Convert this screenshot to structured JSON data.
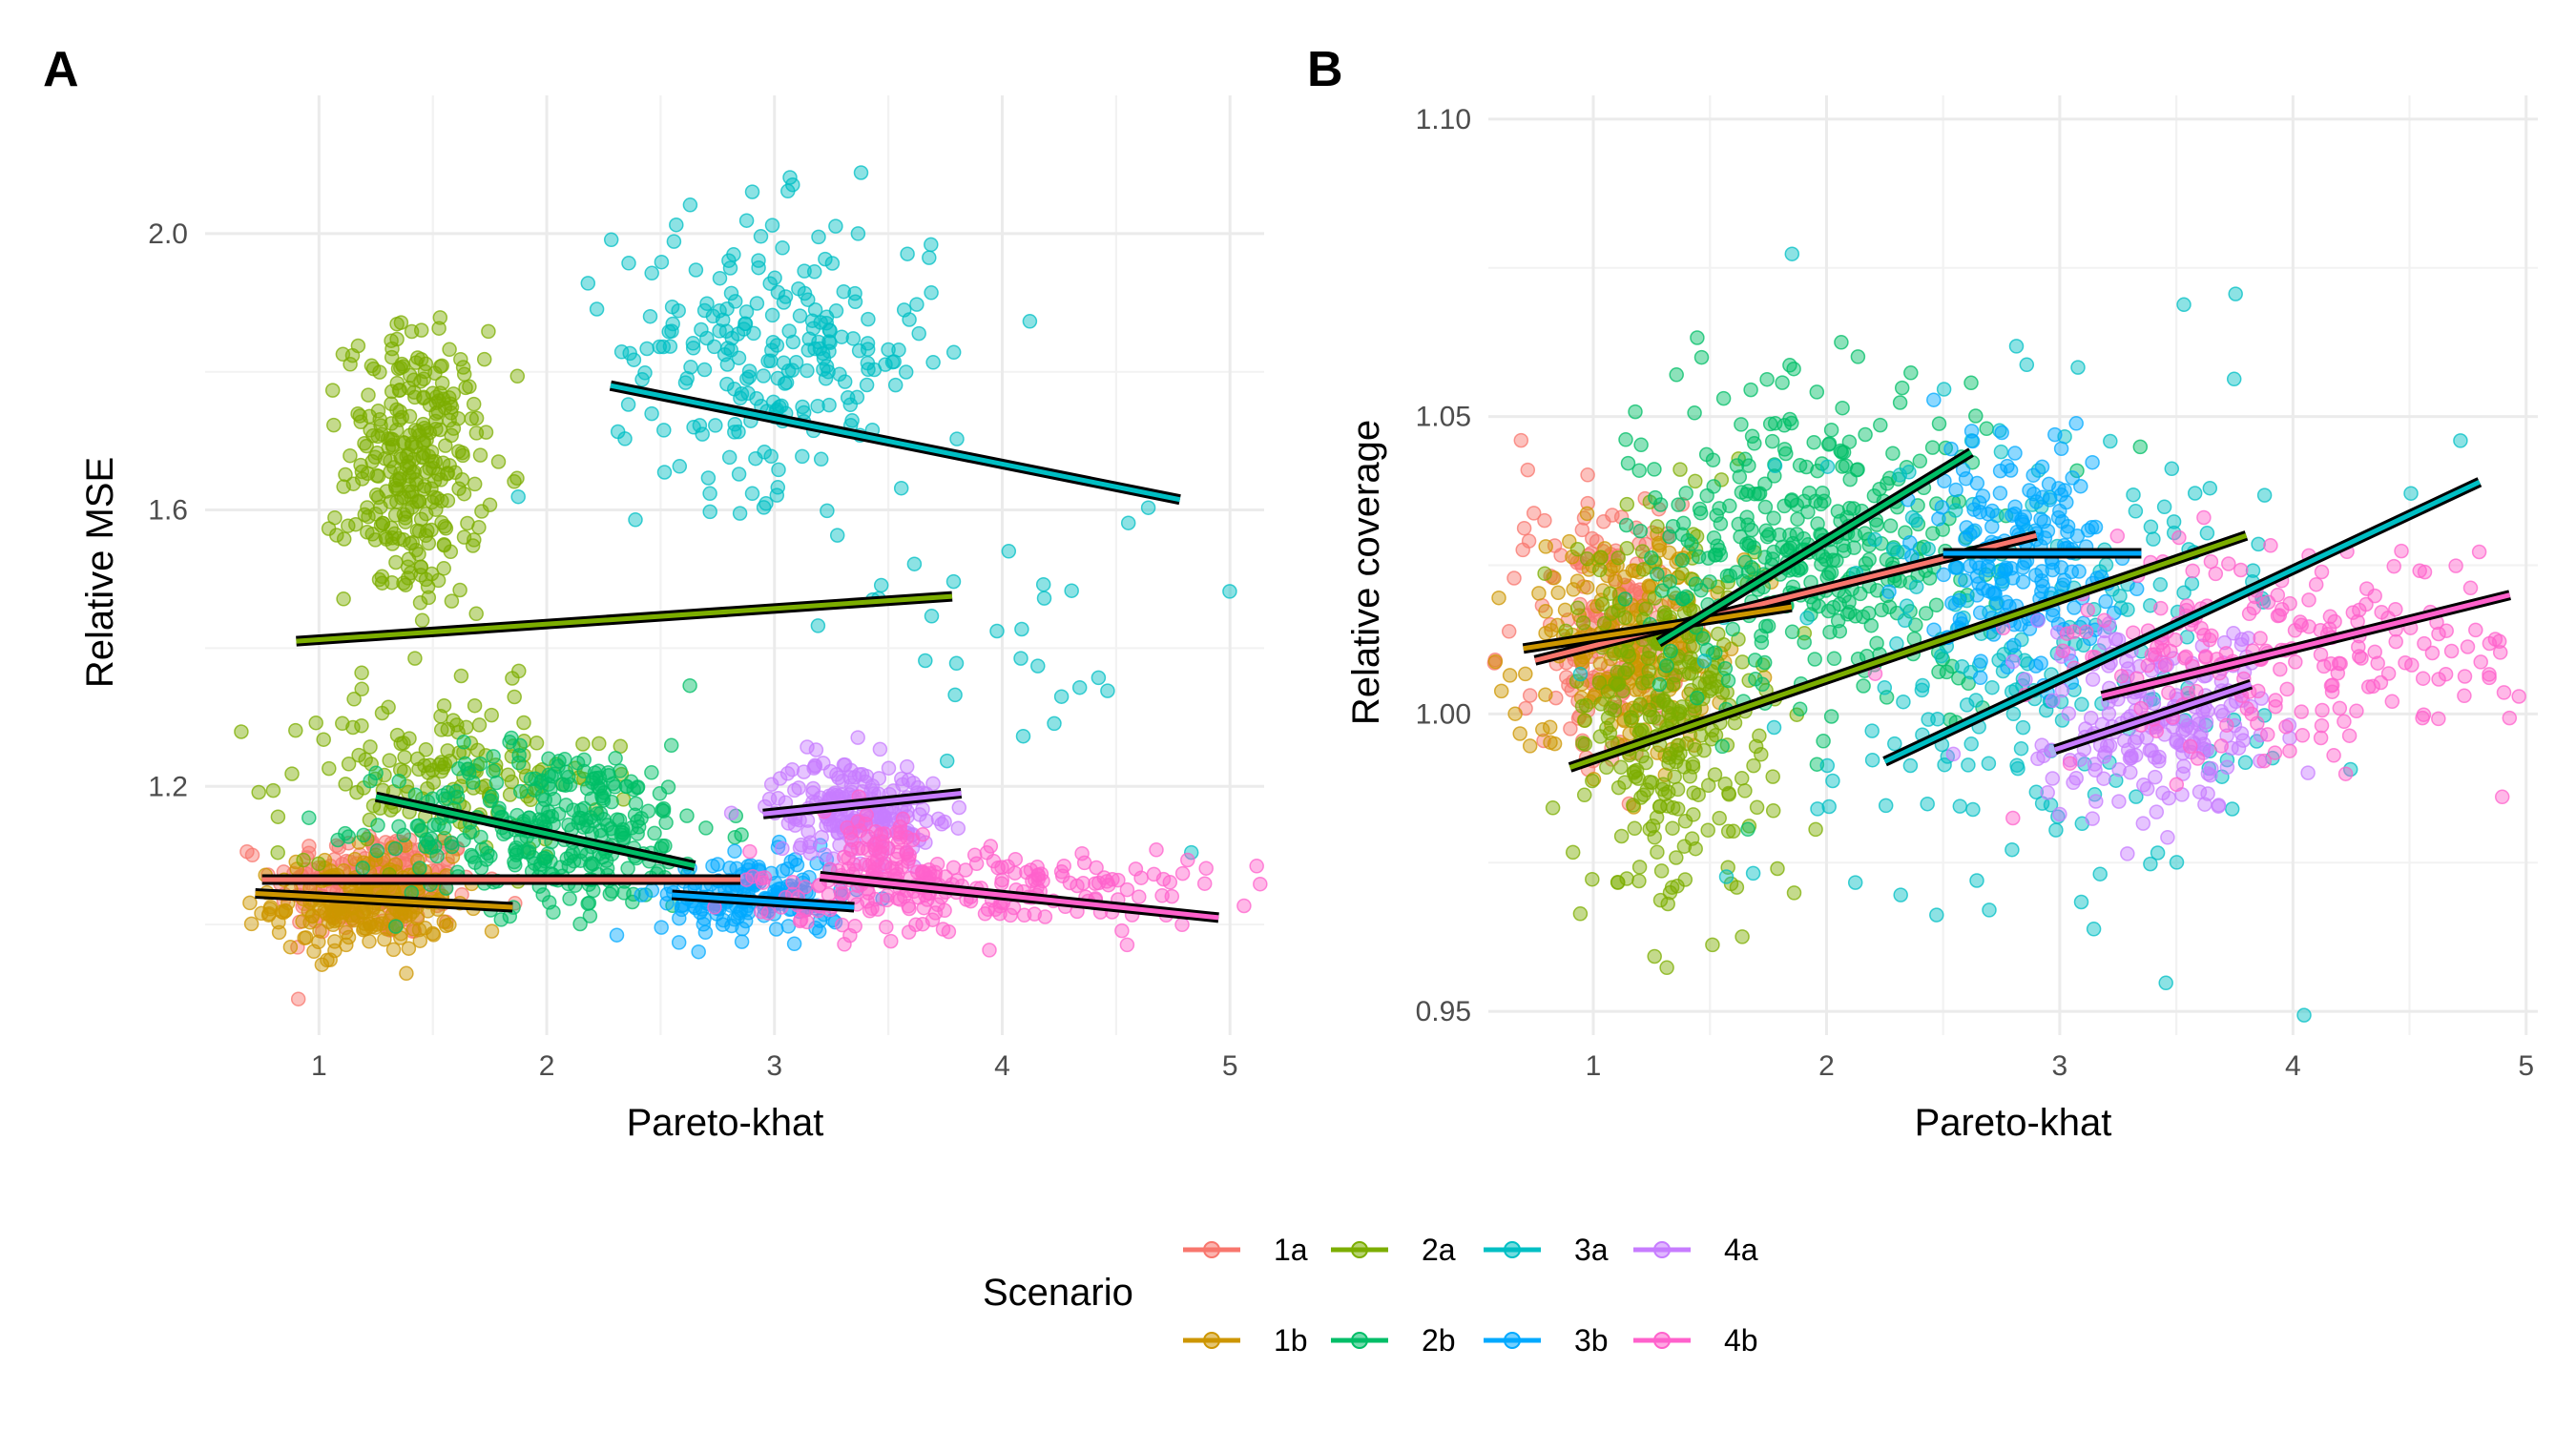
{
  "legend": {
    "title": "Scenario",
    "entries": [
      {
        "key": "1a",
        "label": "1a",
        "color": "#F8766D"
      },
      {
        "key": "2a",
        "label": "2a",
        "color": "#7CAE00"
      },
      {
        "key": "3a",
        "label": "3a",
        "color": "#00BFC4"
      },
      {
        "key": "4a",
        "label": "4a",
        "color": "#C77CFF"
      },
      {
        "key": "1b",
        "label": "1b",
        "color": "#CD9600"
      },
      {
        "key": "2b",
        "label": "2b",
        "color": "#00BE67"
      },
      {
        "key": "3b",
        "label": "3b",
        "color": "#00A9FF"
      },
      {
        "key": "4b",
        "label": "4b",
        "color": "#FF61CC"
      }
    ]
  },
  "chart_data": [
    {
      "panel": "A",
      "type": "scatter",
      "xlabel": "Pareto-khat",
      "ylabel": "Relative MSE",
      "xlim": [
        0.5,
        5.15
      ],
      "ylim": [
        0.84,
        2.2
      ],
      "x_ticks": [
        1,
        2,
        3,
        4,
        5
      ],
      "y_ticks": [
        1.2,
        1.6,
        2.0
      ],
      "y_tick_labels": [
        "1.2",
        "1.6",
        "2.0"
      ],
      "grid": true,
      "clusters": [
        {
          "scenario": "1a",
          "color": "#F8766D",
          "n": 220,
          "x_mean": 1.25,
          "x_sd": 0.22,
          "y_mean": 1.06,
          "y_sd": 0.04
        },
        {
          "scenario": "1b",
          "color": "#CD9600",
          "n": 220,
          "x_mean": 1.2,
          "x_sd": 0.2,
          "y_mean": 1.03,
          "y_sd": 0.035
        },
        {
          "scenario": "2a",
          "color": "#7CAE00",
          "n": 300,
          "x_mean": 1.42,
          "x_sd": 0.15,
          "y_mean": 1.66,
          "y_sd": 0.1
        },
        {
          "scenario": "2a",
          "color": "#7CAE00",
          "n": 150,
          "x_mean": 1.55,
          "x_sd": 0.35,
          "y_mean": 1.22,
          "y_sd": 0.06
        },
        {
          "scenario": "2b",
          "color": "#00BE67",
          "n": 320,
          "x_mean": 2.05,
          "x_sd": 0.35,
          "y_mean": 1.14,
          "y_sd": 0.06
        },
        {
          "scenario": "3a",
          "color": "#00BFC4",
          "n": 230,
          "x_mean": 3.0,
          "x_sd": 0.35,
          "y_mean": 1.83,
          "y_sd": 0.1
        },
        {
          "scenario": "3a",
          "color": "#00BFC4",
          "n": 30,
          "x_mean": 4.0,
          "x_sd": 0.4,
          "y_mean": 1.45,
          "y_sd": 0.12
        },
        {
          "scenario": "3b",
          "color": "#00A9FF",
          "n": 170,
          "x_mean": 2.9,
          "x_sd": 0.2,
          "y_mean": 1.04,
          "y_sd": 0.03
        },
        {
          "scenario": "4a",
          "color": "#C77CFF",
          "n": 200,
          "x_mean": 3.35,
          "x_sd": 0.18,
          "y_mean": 1.17,
          "y_sd": 0.035
        },
        {
          "scenario": "4b",
          "color": "#FF61CC",
          "n": 200,
          "x_mean": 3.9,
          "x_sd": 0.5,
          "y_mean": 1.05,
          "y_sd": 0.03
        },
        {
          "scenario": "4b",
          "color": "#FF61CC",
          "n": 80,
          "x_mean": 3.45,
          "x_sd": 0.18,
          "y_mean": 1.09,
          "y_sd": 0.04
        }
      ],
      "trend_lines": [
        {
          "scenario": "1a",
          "color": "#F8766D",
          "x": [
            0.75,
            2.85
          ],
          "y": [
            1.065,
            1.065
          ]
        },
        {
          "scenario": "1b",
          "color": "#CD9600",
          "x": [
            0.72,
            1.85
          ],
          "y": [
            1.045,
            1.025
          ]
        },
        {
          "scenario": "2a",
          "color": "#7CAE00",
          "x": [
            0.9,
            3.78
          ],
          "y": [
            1.41,
            1.475
          ]
        },
        {
          "scenario": "2b",
          "color": "#00BE67",
          "x": [
            1.25,
            2.65
          ],
          "y": [
            1.185,
            1.085
          ]
        },
        {
          "scenario": "3a",
          "color": "#00BFC4",
          "x": [
            2.28,
            4.78
          ],
          "y": [
            1.78,
            1.615
          ]
        },
        {
          "scenario": "3b",
          "color": "#00A9FF",
          "x": [
            2.55,
            3.35
          ],
          "y": [
            1.043,
            1.025
          ]
        },
        {
          "scenario": "4a",
          "color": "#C77CFF",
          "x": [
            2.95,
            3.82
          ],
          "y": [
            1.16,
            1.19
          ]
        },
        {
          "scenario": "4b",
          "color": "#FF61CC",
          "x": [
            3.2,
            4.95
          ],
          "y": [
            1.07,
            1.01
          ]
        }
      ]
    },
    {
      "panel": "B",
      "type": "scatter",
      "xlabel": "Pareto-khat",
      "ylabel": "Relative coverage",
      "xlim": [
        0.55,
        5.05
      ],
      "ylim": [
        0.946,
        1.104
      ],
      "x_ticks": [
        1,
        2,
        3,
        4,
        5
      ],
      "y_ticks": [
        0.95,
        1.0,
        1.05,
        1.1
      ],
      "y_tick_labels": [
        "0.95",
        "1.00",
        "1.05",
        "1.10"
      ],
      "grid": true,
      "clusters": [
        {
          "scenario": "1a",
          "color": "#F8766D",
          "n": 180,
          "x_mean": 1.05,
          "x_sd": 0.18,
          "y_mean": 1.015,
          "y_sd": 0.011
        },
        {
          "scenario": "1b",
          "color": "#CD9600",
          "n": 240,
          "x_mean": 1.15,
          "x_sd": 0.2,
          "y_mean": 1.012,
          "y_sd": 0.01
        },
        {
          "scenario": "2a",
          "color": "#7CAE00",
          "n": 300,
          "x_mean": 1.35,
          "x_sd": 0.22,
          "y_mean": 1.0,
          "y_sd": 0.016
        },
        {
          "scenario": "2b",
          "color": "#00BE67",
          "n": 380,
          "x_mean": 1.95,
          "x_sd": 0.35,
          "y_mean": 1.028,
          "y_sd": 0.013
        },
        {
          "scenario": "3a",
          "color": "#00BFC4",
          "n": 220,
          "x_mean": 2.85,
          "x_sd": 0.55,
          "y_mean": 1.01,
          "y_sd": 0.022
        },
        {
          "scenario": "3b",
          "color": "#00A9FF",
          "n": 190,
          "x_mean": 2.85,
          "x_sd": 0.2,
          "y_mean": 1.027,
          "y_sd": 0.01
        },
        {
          "scenario": "4a",
          "color": "#C77CFF",
          "n": 200,
          "x_mean": 3.4,
          "x_sd": 0.25,
          "y_mean": 0.998,
          "y_sd": 0.008
        },
        {
          "scenario": "4b",
          "color": "#FF61CC",
          "n": 220,
          "x_mean": 4.0,
          "x_sd": 0.5,
          "y_mean": 1.01,
          "y_sd": 0.008
        }
      ],
      "trend_lines": [
        {
          "scenario": "1a",
          "color": "#F8766D",
          "x": [
            0.75,
            2.9
          ],
          "y": [
            1.009,
            1.03
          ]
        },
        {
          "scenario": "1b",
          "color": "#CD9600",
          "x": [
            0.7,
            1.85
          ],
          "y": [
            1.011,
            1.018
          ]
        },
        {
          "scenario": "2a",
          "color": "#7CAE00",
          "x": [
            0.9,
            3.8
          ],
          "y": [
            0.991,
            1.03
          ]
        },
        {
          "scenario": "2b",
          "color": "#00BE67",
          "x": [
            1.28,
            2.62
          ],
          "y": [
            1.012,
            1.044
          ]
        },
        {
          "scenario": "3a",
          "color": "#00BFC4",
          "x": [
            2.25,
            4.8
          ],
          "y": [
            0.992,
            1.039
          ]
        },
        {
          "scenario": "3b",
          "color": "#00A9FF",
          "x": [
            2.5,
            3.35
          ],
          "y": [
            1.027,
            1.027
          ]
        },
        {
          "scenario": "4a",
          "color": "#C77CFF",
          "x": [
            2.98,
            3.82
          ],
          "y": [
            0.994,
            1.005
          ]
        },
        {
          "scenario": "4b",
          "color": "#FF61CC",
          "x": [
            3.18,
            4.93
          ],
          "y": [
            1.003,
            1.02
          ]
        }
      ]
    }
  ]
}
